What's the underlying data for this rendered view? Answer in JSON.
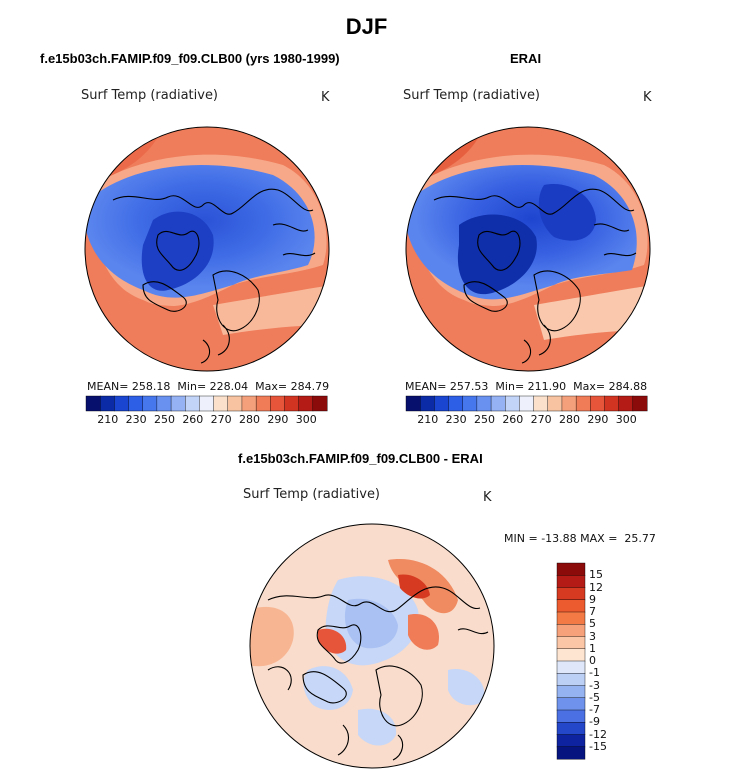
{
  "page": {
    "title": "DJF"
  },
  "panels": [
    {
      "title": "f.e15b03ch.FAMIP.f09_f09.CLB00 (yrs 1980-1999)",
      "variable": "Surf Temp (radiative)",
      "units": "K",
      "stats": {
        "mean_label": "MEAN=",
        "mean": "258.18",
        "min_label": "Min=",
        "min": "228.04",
        "max_label": "Max=",
        "max": "284.79"
      }
    },
    {
      "title": "ERAI",
      "variable": "Surf Temp (radiative)",
      "units": "K",
      "stats": {
        "mean_label": "MEAN=",
        "mean": "257.53",
        "min_label": "Min=",
        "min": "211.90",
        "max_label": "Max=",
        "max": "284.88"
      }
    }
  ],
  "diff_panel": {
    "title": "f.e15b03ch.FAMIP.f09_f09.CLB00 - ERAI",
    "variable": "Surf Temp (radiative)",
    "units": "K",
    "min_label": "MIN =",
    "min": "-13.88",
    "max_label": "MAX =",
    "max": "25.77"
  },
  "colorbar_abs": {
    "ticks": [
      "210",
      "230",
      "250",
      "260",
      "270",
      "280",
      "290",
      "300"
    ],
    "colors": [
      "#08106e",
      "#0a2aa6",
      "#1a45d0",
      "#2d5ee6",
      "#4677ec",
      "#6991f0",
      "#94b2f4",
      "#c2d4f8",
      "#eef0fb",
      "#fbe1cc",
      "#f8c3a1",
      "#f4a07b",
      "#ef7b57",
      "#e6553a",
      "#d23422",
      "#b41b16",
      "#8b0b0b"
    ]
  },
  "colorbar_diff": {
    "ticks": [
      "15",
      "12",
      "9",
      "7",
      "5",
      "3",
      "1",
      "0",
      "-1",
      "-3",
      "-5",
      "-7",
      "-9",
      "-12",
      "-15"
    ],
    "colors": [
      "#8b0b0b",
      "#b41b16",
      "#d63a20",
      "#ec5a30",
      "#f47a45",
      "#f7a17a",
      "#fbc6a6",
      "#fde5d2",
      "#dfe8fb",
      "#bcd0f6",
      "#95b3f1",
      "#6f93ec",
      "#4a70e4",
      "#2446c8",
      "#0e23a0",
      "#061480"
    ]
  },
  "map_colors": {
    "ocean_warm": "#f08060",
    "land_cold": "#3a66e0",
    "diff_neutral": "#f9dccb",
    "diff_cool": "#c7d7f7"
  }
}
